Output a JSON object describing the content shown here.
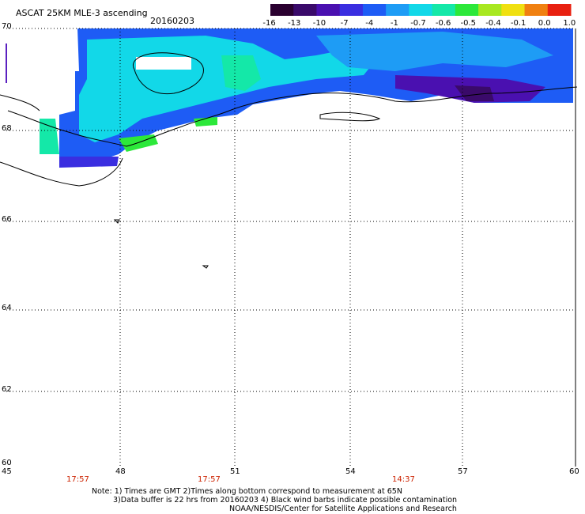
{
  "header": {
    "title": "ASCAT 25KM MLE-3 ascending",
    "date": "20160203"
  },
  "colorbar": {
    "labels": [
      "-16",
      "-13",
      "-10",
      "-7",
      "-4",
      "-1",
      "-0.7",
      "-0.6",
      "-0.5",
      "-0.4",
      "-0.1",
      "0.0",
      "1.0"
    ],
    "colors": [
      "#2a0030",
      "#3a0a6a",
      "#4a10b0",
      "#3a2ee0",
      "#1e5cf5",
      "#1e9cf5",
      "#12d8e8",
      "#14e8a8",
      "#2ce83a",
      "#a8e820",
      "#f0e010",
      "#f08010",
      "#e82010"
    ]
  },
  "axes": {
    "lat_labels": [
      "70",
      "68",
      "66",
      "64",
      "62",
      "60"
    ],
    "lon_labels": [
      "45",
      "48",
      "51",
      "54",
      "57",
      "60"
    ],
    "lat_range": [
      60,
      70
    ],
    "lon_range": [
      45,
      60
    ]
  },
  "times": [
    "17:57",
    "17:57",
    "14:37"
  ],
  "notes": {
    "line1": "Note: 1) Times are GMT 2)Times along bottom correspond to measurement at 65N",
    "line2": "3)Data buffer is 22 hrs from 20160203 4) Black wind barbs indicate possible contamination",
    "line3": "NOAA/NESDIS/Center for Satellite Applications and Research"
  }
}
